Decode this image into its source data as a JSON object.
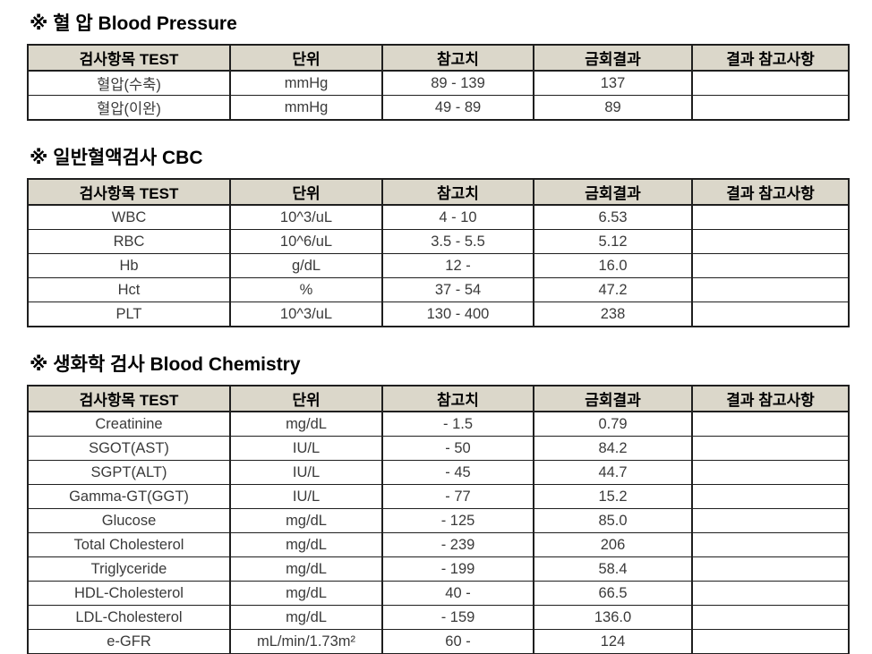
{
  "sections": [
    {
      "id": "blood-pressure",
      "title": "※ 혈 압 Blood Pressure",
      "headers": [
        "검사항목 TEST",
        "단위",
        "참고치",
        "금회결과",
        "결과 참고사항"
      ],
      "rows": [
        [
          "혈압(수축)",
          "mmHg",
          "89 - 139",
          "137",
          ""
        ],
        [
          "혈압(이완)",
          "mmHg",
          "49 - 89",
          "89",
          ""
        ]
      ]
    },
    {
      "id": "cbc",
      "title": "※ 일반혈액검사 CBC",
      "headers": [
        "검사항목 TEST",
        "단위",
        "참고치",
        "금회결과",
        "결과 참고사항"
      ],
      "rows": [
        [
          "WBC",
          "10^3/uL",
          "4 - 10",
          "6.53",
          ""
        ],
        [
          "RBC",
          "10^6/uL",
          "3.5 - 5.5",
          "5.12",
          ""
        ],
        [
          "Hb",
          "g/dL",
          "12 -",
          "16.0",
          ""
        ],
        [
          "Hct",
          "%",
          "37 - 54",
          "47.2",
          ""
        ],
        [
          "PLT",
          "10^3/uL",
          "130 - 400",
          "238",
          ""
        ]
      ]
    },
    {
      "id": "blood-chemistry",
      "title": "※ 생화학 검사 Blood Chemistry",
      "headers": [
        "검사항목 TEST",
        "단위",
        "참고치",
        "금회결과",
        "결과 참고사항"
      ],
      "rows": [
        [
          "Creatinine",
          "mg/dL",
          "- 1.5",
          "0.79",
          ""
        ],
        [
          "SGOT(AST)",
          "IU/L",
          "- 50",
          "84.2",
          ""
        ],
        [
          "SGPT(ALT)",
          "IU/L",
          "- 45",
          "44.7",
          ""
        ],
        [
          "Gamma-GT(GGT)",
          "IU/L",
          "- 77",
          "15.2",
          ""
        ],
        [
          "Glucose",
          "mg/dL",
          "- 125",
          "85.0",
          ""
        ],
        [
          "Total Cholesterol",
          "mg/dL",
          "- 239",
          "206",
          ""
        ],
        [
          "Triglyceride",
          "mg/dL",
          "- 199",
          "58.4",
          ""
        ],
        [
          "HDL-Cholesterol",
          "mg/dL",
          "40 -",
          "66.5",
          ""
        ],
        [
          "LDL-Cholesterol",
          "mg/dL",
          "- 159",
          "136.0",
          ""
        ],
        [
          "e-GFR",
          "mL/min/1.73m²",
          "60 -",
          "124",
          ""
        ]
      ]
    }
  ],
  "colors": {
    "header_background": "#dbd7ca",
    "table_border": "#1f1f1f",
    "data_text": "#3a3a3a",
    "title_text": "#000000"
  }
}
